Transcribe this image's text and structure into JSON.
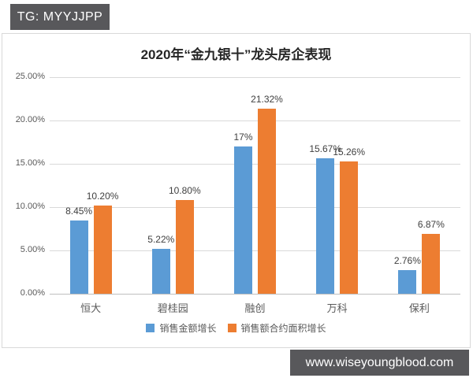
{
  "badges": {
    "top_left": "TG: MYYJJPP",
    "bottom_right": "www.wiseyoungblood.com"
  },
  "chart_data": {
    "type": "bar",
    "title": "2020年“金九银十”龙头房企表现",
    "categories": [
      "恒大",
      "碧桂园",
      "融创",
      "万科",
      "保利"
    ],
    "series": [
      {
        "name": "销售金额增长",
        "color": "#5B9BD5",
        "values": [
          8.45,
          5.22,
          17,
          15.67,
          2.76
        ],
        "labels": [
          "8.45%",
          "5.22%",
          "17%",
          "15.67%",
          "2.76%"
        ]
      },
      {
        "name": "销售额合约面积增长",
        "color": "#ED7D31",
        "values": [
          10.2,
          10.8,
          21.32,
          15.26,
          6.87
        ],
        "labels": [
          "10.20%",
          "10.80%",
          "21.32%",
          "15.26%",
          "6.87%"
        ]
      }
    ],
    "ylim": [
      0,
      25
    ],
    "ytick_step": 5,
    "ytick_labels": [
      "25.00%",
      "20.00%",
      "15.00%",
      "10.00%",
      "5.00%",
      "0.00%"
    ],
    "grid": true,
    "legend_position": "bottom"
  },
  "colors": {
    "badge_background": "#58585b",
    "badge_text": "#ffffff",
    "panel_border": "#d9d9d9",
    "gridline": "#d9d9d9",
    "axis_text": "#595959",
    "data_label_text": "#404040",
    "title_text": "#262626"
  }
}
